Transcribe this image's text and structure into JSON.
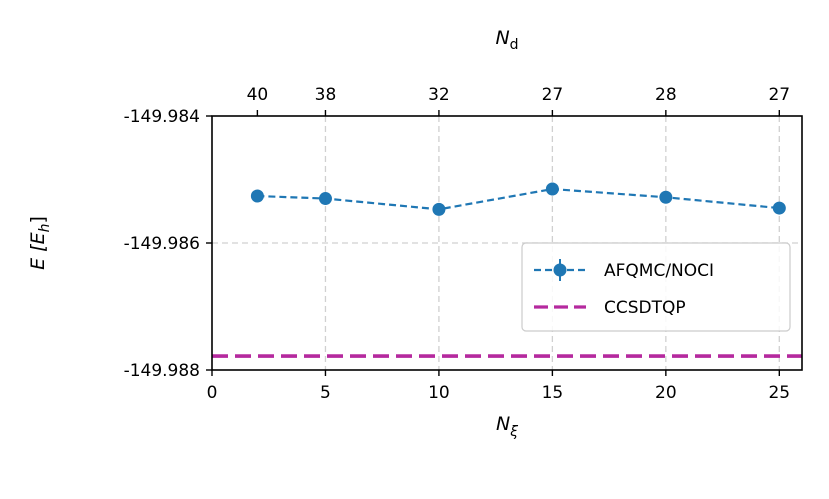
{
  "chart_data": {
    "type": "line",
    "x": [
      2,
      5,
      10,
      15,
      20,
      25
    ],
    "series": [
      {
        "name": "AFQMC/NOCI",
        "values": [
          -149.98526,
          -149.9853,
          -149.98547,
          -149.98515,
          -149.98528,
          -149.98545
        ],
        "error": [
          9e-05,
          9e-05,
          8e-05,
          0.0001,
          8e-05,
          9e-05
        ],
        "color": "#1f77b4",
        "style": "dashed-with-markers"
      },
      {
        "name": "CCSDTQP",
        "constant": -149.98778,
        "color": "#b5299e",
        "style": "dashed"
      }
    ],
    "xlabel_base": "N",
    "xlabel_sub": "ξ",
    "ylabel_text": "E [E",
    "ylabel_sub": "h",
    "ylabel_close": "]",
    "top_xlabel_base": "N",
    "top_xlabel_sub": "d",
    "xlim": [
      0,
      26
    ],
    "ylim": [
      -149.988,
      -149.984
    ],
    "xticks": [
      0,
      5,
      10,
      15,
      20,
      25
    ],
    "xtick_labels": [
      "0",
      "5",
      "10",
      "15",
      "20",
      "25"
    ],
    "yticks": [
      -149.988,
      -149.986,
      -149.984
    ],
    "ytick_labels": [
      "-149.988",
      "-149.986",
      "-149.984"
    ],
    "top_xticks": [
      2,
      5,
      10,
      15,
      20,
      25
    ],
    "top_xtick_labels": [
      "40",
      "38",
      "32",
      "27",
      "28",
      "27"
    ],
    "grid": true,
    "legend_position": "center-right"
  }
}
